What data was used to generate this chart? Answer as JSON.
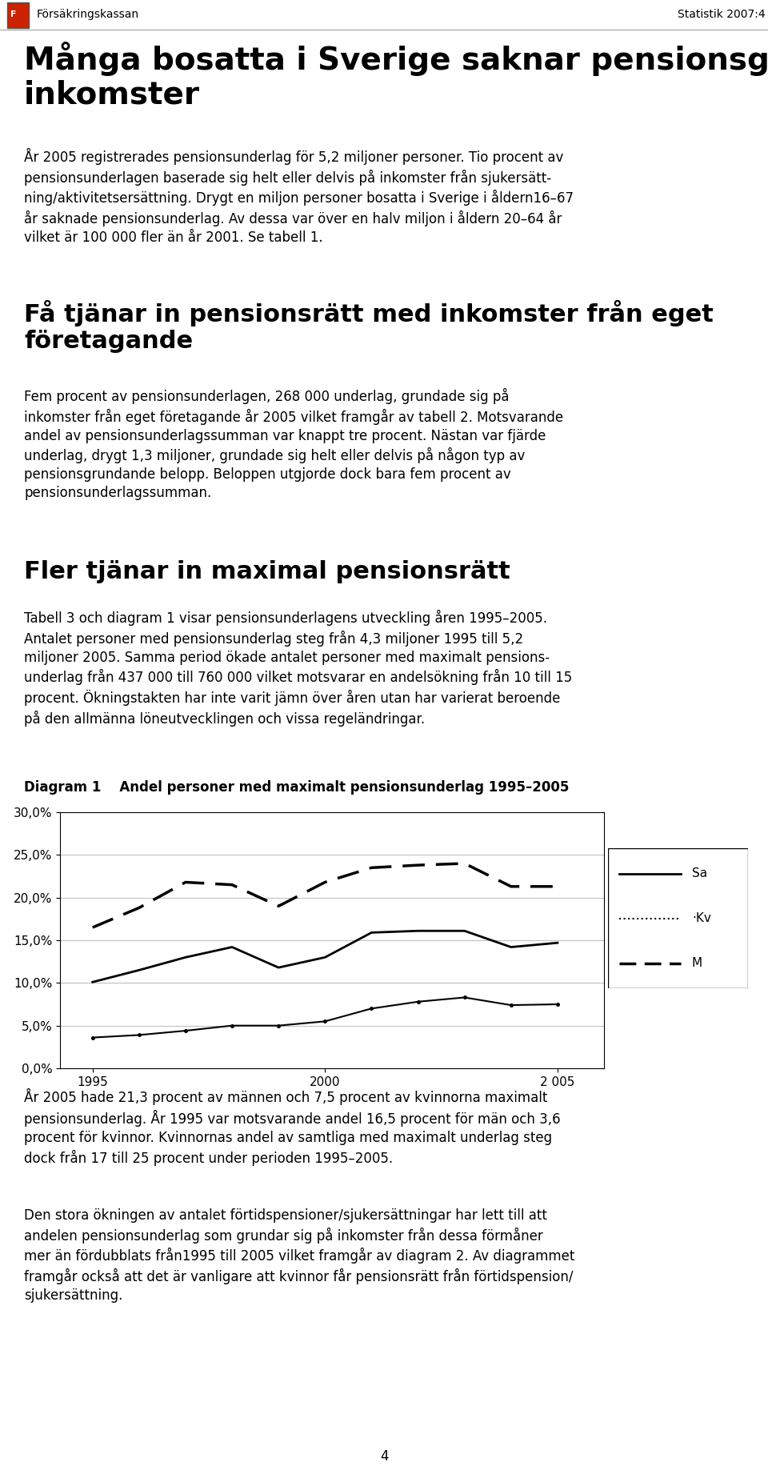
{
  "header_left": "Försäkringskassan",
  "header_right": "Statistik 2007:4",
  "main_title_line1": "Många bosatta i Sverige saknar pensionsgrundande",
  "main_title_line2": "inkomster",
  "para1_lines": [
    "År 2005 registrerades pensionsunderlag för 5,2 miljoner personer. Tio procent av",
    "pensionsunderlagen baserade sig helt eller delvis på inkomster från sjukersätt-",
    "ning/aktivitetsersättning. Drygt en miljon personer bosatta i Sverige i åldern16–67",
    "år saknade pensionsunderlag. Av dessa var över en halv miljon i åldern 20–64 år",
    "vilket är 100 000 fler än år 2001. Se tabell 1."
  ],
  "section1_title_line1": "Få tjänar in pensionsrätt med inkomster från eget",
  "section1_title_line2": "företagande",
  "para2_lines": [
    "Fem procent av pensionsunderlagen, 268 000 underlag, grundade sig på",
    "inkomster från eget företagande år 2005 vilket framgår av tabell 2. Motsvarande",
    "andel av pensionsunderlagssumman var knappt tre procent. Nästan var fjärde",
    "underlag, drygt 1,3 miljoner, grundade sig helt eller delvis på någon typ av",
    "pensionsgrundande belopp. Beloppen utgjorde dock bara fem procent av",
    "pensionsunderlagssumman."
  ],
  "section2_title": "Fler tjänar in maximal pensionsrätt",
  "para3_lines": [
    "Tabell 3 och diagram 1 visar pensionsunderlagens utveckling åren 1995–2005.",
    "Antalet personer med pensionsunderlag steg från 4,3 miljoner 1995 till 5,2",
    "miljoner 2005. Samma period ökade antalet personer med maximalt pensions-",
    "underlag från 437 000 till 760 000 vilket motsvarar en andelsökning från 10 till 15",
    "procent. Ökningstakten har inte varit jämn över åren utan har varierat beroende",
    "på den allmänna löneutvecklingen och vissa regeländringar."
  ],
  "diagram_title": "Diagram 1    Andel personer med maximalt pensionsunderlag 1995–2005",
  "years": [
    1995,
    1996,
    1997,
    1998,
    1999,
    2000,
    2001,
    2002,
    2003,
    2004,
    2005
  ],
  "Sa": [
    10.1,
    11.5,
    13.0,
    14.2,
    11.8,
    13.0,
    15.9,
    16.1,
    16.1,
    14.2,
    14.7
  ],
  "Kv": [
    3.6,
    3.9,
    4.4,
    5.0,
    5.0,
    5.5,
    7.0,
    7.8,
    8.3,
    7.4,
    7.5
  ],
  "M": [
    16.5,
    18.8,
    21.8,
    21.5,
    19.0,
    21.8,
    23.5,
    23.8,
    24.0,
    21.3,
    21.3
  ],
  "ylim": [
    0.0,
    0.3
  ],
  "yticks": [
    0.0,
    0.05,
    0.1,
    0.15,
    0.2,
    0.25,
    0.3
  ],
  "ytick_labels": [
    "0,0%",
    "5,0%",
    "10,0%",
    "15,0%",
    "20,0%",
    "25,0%",
    "30,0%"
  ],
  "xtick_labels": [
    "1995",
    "2000",
    "2 005"
  ],
  "xtick_positions": [
    1995,
    2000,
    2005
  ],
  "legend_Sa": "Sa",
  "legend_Kv": "·Kv",
  "legend_M": "M",
  "para4_lines": [
    "År 2005 hade 21,3 procent av männen och 7,5 procent av kvinnorna maximalt",
    "pensionsunderlag. År 1995 var motsvarande andel 16,5 procent för män och 3,6",
    "procent för kvinnor. Kvinnornas andel av samtliga med maximalt underlag steg",
    "dock från 17 till 25 procent under perioden 1995–2005."
  ],
  "para5_lines": [
    "Den stora ökningen av antalet förtidspensioner/sjukersättningar har lett till att",
    "andelen pensionsunderlag som grundar sig på inkomster från dessa förmåner",
    "mer än fördubblats från1995 till 2005 vilket framgår av diagram 2. Av diagrammet",
    "framgår också att det är vanligare att kvinnor får pensionsrätt från förtidspension/",
    "sjukersättning."
  ],
  "page_number": "4",
  "background_color": "#ffffff",
  "text_color": "#000000"
}
